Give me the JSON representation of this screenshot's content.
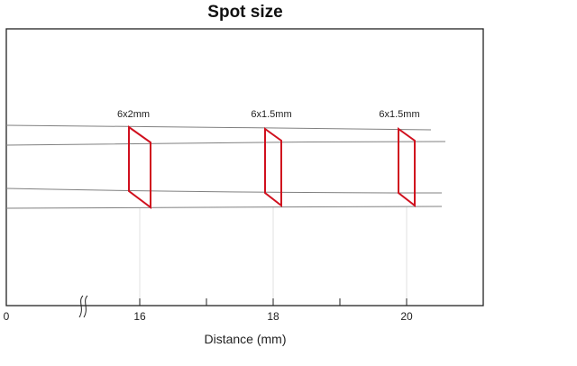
{
  "title": "Spot size",
  "axis": {
    "xlabel": "Distance (mm)",
    "origin_label": "0",
    "ticks": [
      {
        "value": 16,
        "label": "16"
      },
      {
        "value": 18,
        "label": "18"
      },
      {
        "value": 20,
        "label": "20"
      }
    ],
    "minor_ticks": [
      17,
      19
    ],
    "axis_break": true
  },
  "spots": [
    {
      "distance": 16,
      "label": "6x2mm"
    },
    {
      "distance": 18,
      "label": "6x1.5mm"
    },
    {
      "distance": 20,
      "label": "6x1.5mm"
    }
  ],
  "colors": {
    "spot_outline": "#d0101e",
    "beam_lines": "#808080",
    "frame": "#222222",
    "guide_lines": "#e2e2e2"
  }
}
